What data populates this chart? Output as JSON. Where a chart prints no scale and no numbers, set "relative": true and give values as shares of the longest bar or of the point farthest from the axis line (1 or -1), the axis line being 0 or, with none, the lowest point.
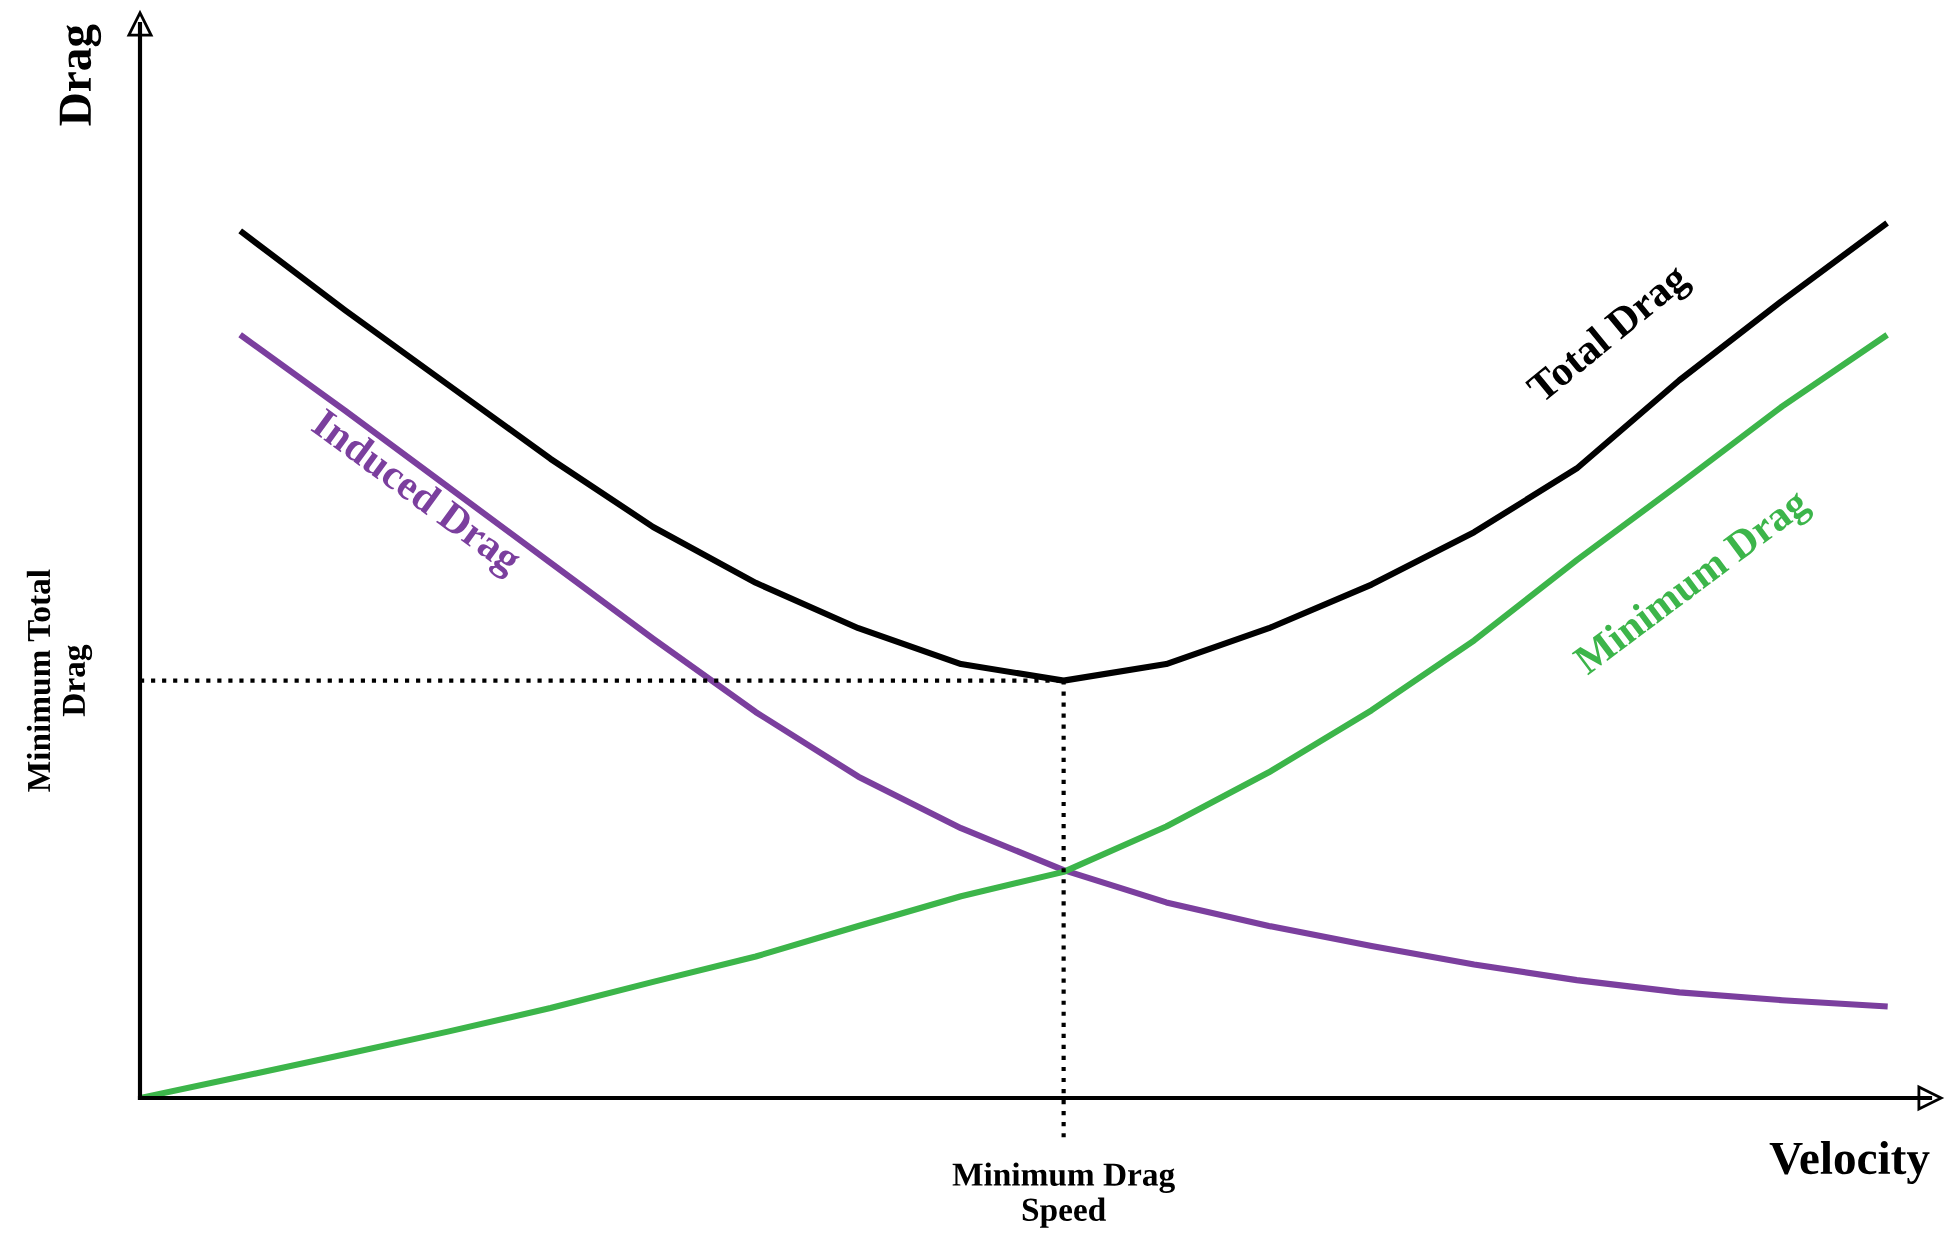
{
  "chart_data": {
    "type": "line",
    "relative": true,
    "xlabel": "Velocity",
    "ylabel": "Drag",
    "legend": false,
    "marker": "none",
    "line_style": "solid",
    "categories": [
      null,
      null,
      null,
      null,
      null,
      null,
      null,
      null,
      null,
      null,
      null,
      null,
      null,
      null,
      null,
      null,
      null,
      null
    ],
    "series": [
      {
        "name": "Total Drag",
        "color": "#000000",
        "values": [
          null,
          0.991,
          0.902,
          0.817,
          0.732,
          0.654,
          0.59,
          0.538,
          0.497,
          0.478,
          0.497,
          0.538,
          0.588,
          0.648,
          0.721,
          0.822,
          0.913,
          1.0
        ]
      },
      {
        "name": "Induced Drag",
        "color": "#7b3f9e",
        "values": [
          null,
          0.872,
          0.787,
          0.7,
          0.613,
          0.526,
          0.442,
          0.368,
          0.309,
          0.261,
          0.224,
          0.197,
          0.174,
          0.153,
          0.135,
          0.121,
          0.112,
          0.105
        ]
      },
      {
        "name": "Minimum Drag",
        "color": "#3cb54a",
        "values": [
          0.0,
          0.025,
          0.05,
          0.076,
          0.103,
          0.133,
          0.162,
          0.197,
          0.231,
          0.259,
          0.311,
          0.373,
          0.444,
          0.524,
          0.616,
          0.703,
          0.792,
          0.872
        ]
      }
    ],
    "ref_lines": [
      {
        "axis": "y",
        "value": 0.478,
        "label": "Minimum Total Drag",
        "color": "#000000",
        "line_style": "dotted"
      },
      {
        "axis": "x",
        "label": "Minimum Drag Speed",
        "color": "#000000",
        "line_style": "dotted"
      }
    ]
  }
}
